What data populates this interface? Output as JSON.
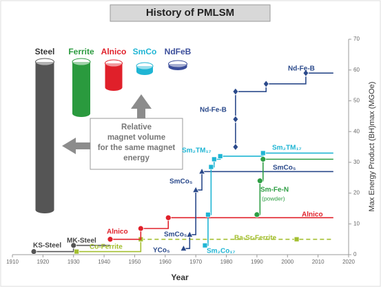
{
  "chart_data": {
    "type": "step-line",
    "title": "History of PMLSM",
    "x_label": "Year",
    "y_label": "Max Energy Product (BH)max (MGOe)",
    "xlim": [
      1910,
      2020
    ],
    "xticks": [
      1910,
      1920,
      1930,
      1940,
      1950,
      1960,
      1970,
      1980,
      1990,
      2000,
      2010,
      2020
    ],
    "ylim": [
      0,
      70
    ],
    "yticks": [
      0,
      10,
      20,
      30,
      40,
      50,
      60,
      70
    ],
    "y_axis_side": "right",
    "series": [
      {
        "name": "KS-Steel",
        "color": "#555555",
        "marker": "circle",
        "open_end": true,
        "x": [
          1917,
          1930,
          1942
        ],
        "values": [
          1,
          3,
          3
        ]
      },
      {
        "name": "Co-Ferrite",
        "color": "#a3bf2f",
        "marker": "square",
        "open_end": false,
        "x": [
          1931,
          1952
        ],
        "values": [
          1,
          5
        ]
      },
      {
        "name": "Ba-Sr-Ferrite",
        "color": "#a3bf2f",
        "marker": "square",
        "dashed": true,
        "open_end": true,
        "x": [
          1952,
          2003,
          2015
        ],
        "values": [
          5,
          5,
          5
        ]
      },
      {
        "name": "Alnico",
        "color": "#e0202a",
        "marker": "circle",
        "open_end": true,
        "x": [
          1942,
          1952,
          1961,
          2015
        ],
        "values": [
          5,
          8.5,
          12,
          12
        ]
      },
      {
        "name": "SmCo5",
        "color": "#2b4a8b",
        "marker": "triangle",
        "open_end": true,
        "x": [
          1966,
          1968,
          1970,
          1972,
          2015
        ],
        "values": [
          2,
          6.5,
          21,
          27,
          27
        ]
      },
      {
        "name": "Sm2TM17",
        "color": "#1fb5d4",
        "marker": "square",
        "open_end": true,
        "x": [
          1973,
          1974,
          1975,
          1976,
          1978,
          1992,
          2015
        ],
        "values": [
          3,
          13,
          28.5,
          31,
          32,
          33,
          33
        ]
      },
      {
        "name": "Sm-Fe-N",
        "color": "#2e9e44",
        "marker": "circle",
        "open_end": true,
        "x": [
          1990,
          1991,
          1992,
          2015
        ],
        "values": [
          13,
          24,
          31,
          31
        ]
      },
      {
        "name": "Nd-Fe-B",
        "color": "#2b4a8b",
        "marker": "diamond",
        "open_end": true,
        "x": [
          1983,
          1983,
          1983,
          1993,
          2006,
          2015
        ],
        "values": [
          35,
          44,
          53,
          55.5,
          59,
          59
        ]
      }
    ],
    "annotations": [
      {
        "text": "KS-Steel",
        "color": "#444444"
      },
      {
        "text": "MK-Steel",
        "color": "#444444"
      },
      {
        "text": "Co-Ferrite",
        "color": "#a3bf2f"
      },
      {
        "text": "Ba-Sr-Ferrite",
        "color": "#a3bf2f"
      },
      {
        "text": "Alnico",
        "color": "#e0202a"
      },
      {
        "text": "Alnico",
        "color": "#e0202a"
      },
      {
        "text": "SmCo₅",
        "color": "#2b4a8b"
      },
      {
        "text": "YCo₅",
        "color": "#2b4a8b"
      },
      {
        "text": "Sm₂Co₁₇",
        "color": "#1fb5d4"
      },
      {
        "text": "SmCo₅",
        "color": "#2b4a8b"
      },
      {
        "text": "Nd-Fe-B",
        "color": "#2b4a8b"
      },
      {
        "text": "Sm₂TM₁₇",
        "color": "#1fb5d4"
      },
      {
        "text": "Sm₂TM₁₇",
        "color": "#1fb5d4"
      },
      {
        "text": "SmCo₅",
        "color": "#2b4a8b"
      },
      {
        "text": "Sm-Fe-N",
        "color": "#2e9e44"
      },
      {
        "text": "(powder)",
        "color": "#2e9e44"
      },
      {
        "text": "Nd-Fe-B",
        "color": "#2b4a8b"
      }
    ],
    "magnets": [
      {
        "name": "Steel",
        "color": "#555555"
      },
      {
        "name": "Ferrite",
        "color": "#2a9a3e"
      },
      {
        "name": "Alnico",
        "color": "#e0202a"
      },
      {
        "name": "SmCo",
        "color": "#1fb5d4"
      },
      {
        "name": "NdFeB",
        "color": "#3a4d9a"
      }
    ],
    "note": "Relative magnet volume for the same magnet energy"
  }
}
